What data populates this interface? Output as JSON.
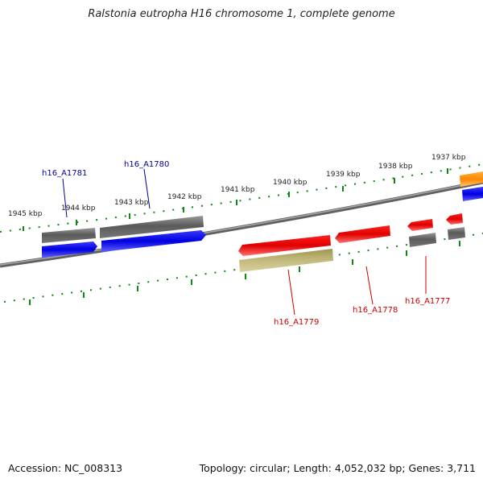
{
  "header": {
    "title": "Ralstonia eutropha H16 chromosome 1, complete genome"
  },
  "footer": {
    "accession": "Accession: NC_008313",
    "summary": "Topology: circular; Length: 4,052,032 bp; Genes: 3,711"
  },
  "scale": {
    "unit": "kbp",
    "ticks": [
      "1945 kbp",
      "1944 kbp",
      "1943 kbp",
      "1942 kbp",
      "1941 kbp",
      "1940 kbp",
      "1939 kbp",
      "1938 kbp",
      "1937 kbp"
    ]
  },
  "gene_labels": {
    "top": [
      "h16_A1781",
      "h16_A1780"
    ],
    "bottom": [
      "h16_A1779",
      "h16_A1778",
      "h16_A1777"
    ]
  },
  "colors": {
    "forward_gene": "#0000dd",
    "reverse_gene": "#ee0000",
    "rna_gene": "#666666",
    "other_feature": "#b8b070",
    "accent_feature": "#ff8800",
    "tick": "#118811",
    "backbone": "#808080",
    "label_forward": "#000099",
    "label_reverse": "#cc0000"
  }
}
